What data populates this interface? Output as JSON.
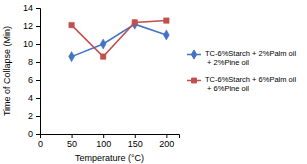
{
  "chart_data": {
    "type": "line",
    "xlabel": "Temperature (°C)",
    "ylabel": "Time of Collapse (Min)",
    "x": [
      50,
      100,
      150,
      200
    ],
    "series": [
      {
        "name": "TC-6%Starch + 2%Palm oil\n + 2%Pine oil",
        "color": "#4472C4",
        "marker": "diamond",
        "values": [
          8.6,
          10.0,
          12.2,
          11.0
        ]
      },
      {
        "name": "TC-6%Starch + 6%Palm oil\n + 6%Pine oil",
        "color": "#C0504D",
        "marker": "square",
        "values": [
          12.1,
          8.6,
          12.4,
          12.6
        ]
      }
    ],
    "xlim": [
      0,
      220
    ],
    "ylim": [
      0,
      14
    ],
    "xticks": [
      0,
      50,
      100,
      150,
      200
    ],
    "yticks": [
      0,
      2,
      4,
      6,
      8,
      10,
      12,
      14
    ],
    "grid": false,
    "legend": "right"
  }
}
